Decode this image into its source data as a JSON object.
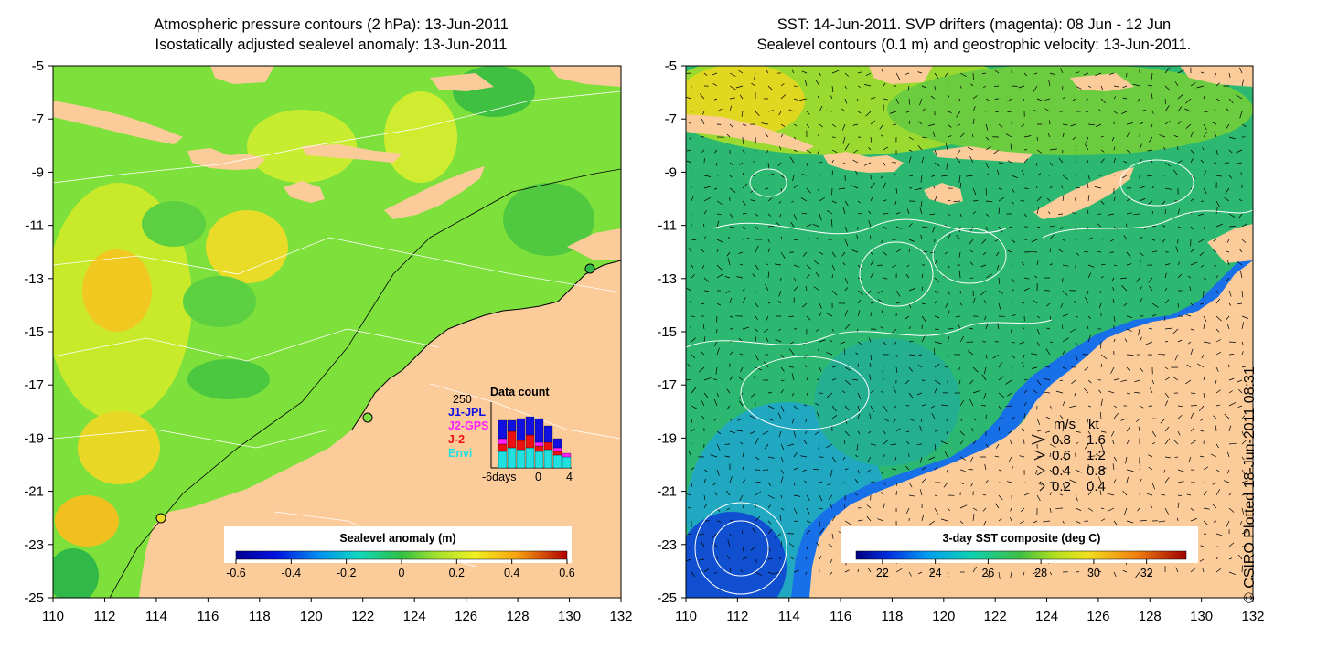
{
  "left_panel": {
    "title_line1": "Atmospheric pressure contours (2 hPa): 13-Jun-2011",
    "title_line2": "Isostatically adjusted sealevel anomaly: 13-Jun-2011",
    "colorbar_label": "Sealevel anomaly (m)",
    "colorbar_ticks": [
      "-0.6",
      "-0.4",
      "-0.2",
      "0",
      "0.2",
      "0.4",
      "0.6"
    ],
    "colorbar_range": [
      -0.6,
      0.6
    ],
    "inset": {
      "title": "Data count",
      "y_top_label": "250",
      "x_labels": [
        "-6days",
        "0",
        "4"
      ],
      "legend": [
        {
          "name": "J1-JPL",
          "color": "#1010e0"
        },
        {
          "name": "J2-GPS",
          "color": "#ff20ff"
        },
        {
          "name": "J-2",
          "color": "#ee1010"
        },
        {
          "name": "Envi",
          "color": "#20e0e0"
        }
      ]
    }
  },
  "right_panel": {
    "title_line1": "SST: 14-Jun-2011. SVP drifters (magenta): 08 Jun - 12 Jun",
    "title_line2": "Sealevel contours (0.1 m) and geostrophic velocity: 13-Jun-2011.",
    "colorbar_label": "3-day SST composite (deg C)",
    "colorbar_ticks": [
      "22",
      "24",
      "26",
      "28",
      "30",
      "32"
    ],
    "colorbar_range": [
      21,
      33.5
    ],
    "velocity_legend": {
      "header_ms": "m/s",
      "header_kt": "kt",
      "rows": [
        {
          "ms": "0.8",
          "kt": "1.6"
        },
        {
          "ms": "0.6",
          "kt": "1.2"
        },
        {
          "ms": "0.4",
          "kt": "0.8"
        },
        {
          "ms": "0.2",
          "kt": "0.4"
        }
      ]
    }
  },
  "axes": {
    "x_ticks": [
      "110",
      "112",
      "114",
      "116",
      "118",
      "120",
      "122",
      "124",
      "126",
      "128",
      "130",
      "132"
    ],
    "y_ticks": [
      "-5",
      "-7",
      "-9",
      "-11",
      "-13",
      "-15",
      "-17",
      "-19",
      "-21",
      "-23",
      "-25"
    ],
    "x_range": [
      110,
      132
    ],
    "y_range": [
      -25,
      -5
    ]
  },
  "credit": "© CSIRO Plotted 18-Jun-2011 08:31",
  "colors": {
    "land": "#fccb9a",
    "sea_green": "#7ee03a",
    "sea_yellow": "#d8ee30",
    "sst_green": "#2cb870",
    "sst_blue": "#1870e8"
  }
}
